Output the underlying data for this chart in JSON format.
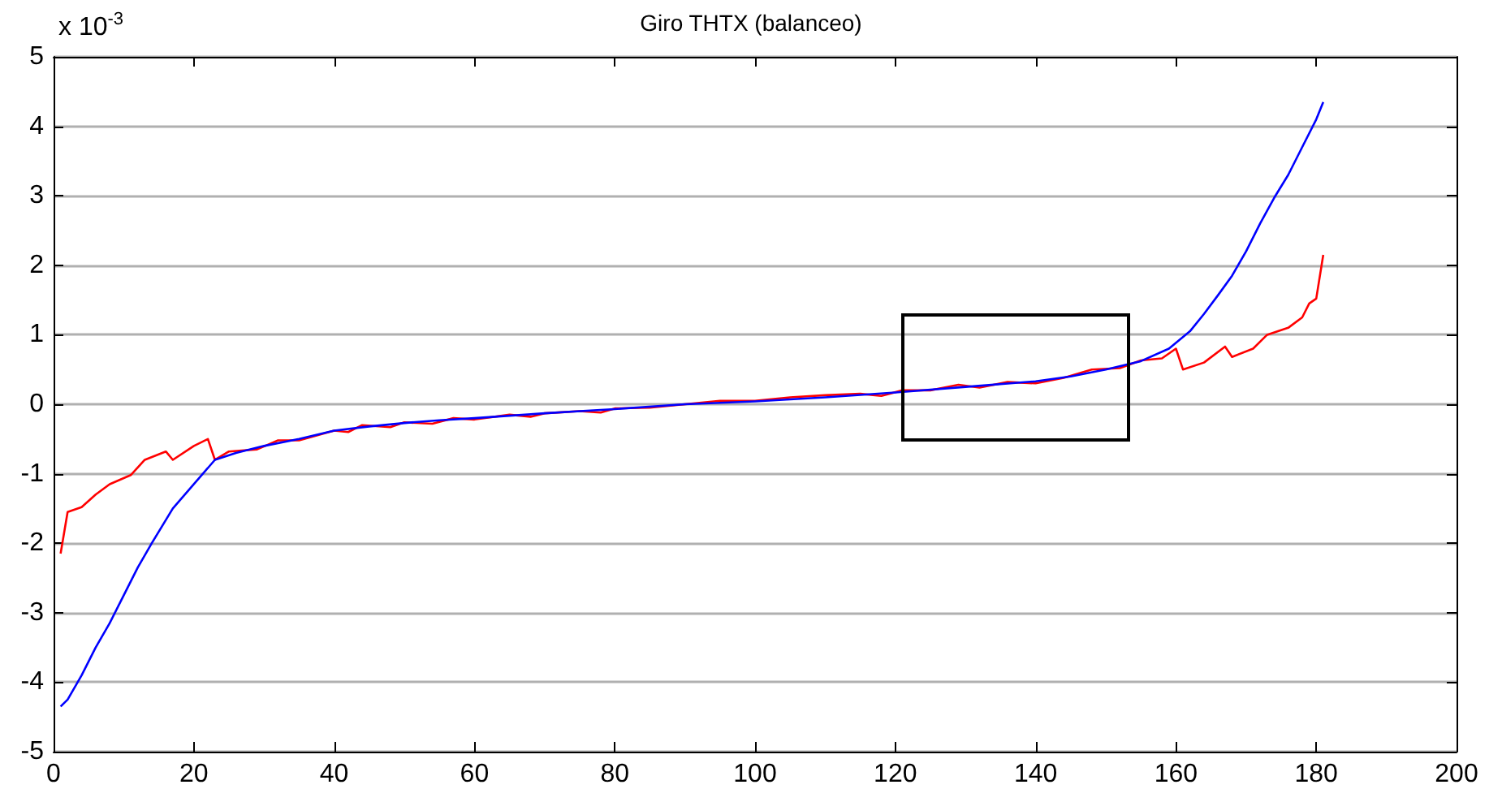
{
  "chart_data": {
    "type": "line",
    "title": "Giro THTX (balanceo)",
    "annotations": [
      "x 10$^{-3}$"
    ],
    "xlim": [
      0,
      200
    ],
    "xticks": [
      0,
      20,
      40,
      60,
      80,
      100,
      120,
      140,
      160,
      180,
      200
    ],
    "ylim": [
      -5,
      5
    ],
    "yticks": [
      -5,
      -4,
      -3,
      -2,
      -1,
      0,
      1,
      2,
      3,
      4,
      5
    ],
    "grid": "y",
    "marker": "none",
    "line_style": "solid",
    "series": [
      {
        "color": "#ff0000",
        "x": [
          1,
          2,
          4,
          6,
          8,
          11,
          13,
          16,
          17,
          20,
          22,
          23,
          25,
          29,
          32,
          35,
          40,
          42,
          44,
          48,
          50,
          54,
          57,
          60,
          65,
          68,
          70,
          75,
          78,
          80,
          85,
          90,
          95,
          100,
          105,
          110,
          115,
          118,
          121,
          125,
          129,
          132,
          136,
          140,
          144,
          148,
          152,
          155,
          158,
          160,
          161,
          164,
          167,
          168,
          171,
          173,
          176,
          178,
          179,
          180,
          181
        ],
        "values": [
          -2.15,
          -1.55,
          -1.48,
          -1.3,
          -1.15,
          -1.02,
          -0.8,
          -0.68,
          -0.8,
          -0.6,
          -0.5,
          -0.8,
          -0.68,
          -0.65,
          -0.52,
          -0.52,
          -0.38,
          -0.4,
          -0.3,
          -0.33,
          -0.26,
          -0.28,
          -0.2,
          -0.22,
          -0.15,
          -0.18,
          -0.13,
          -0.1,
          -0.12,
          -0.06,
          -0.05,
          0,
          0.05,
          0.05,
          0.1,
          0.13,
          0.15,
          0.12,
          0.2,
          0.2,
          0.28,
          0.24,
          0.32,
          0.3,
          0.38,
          0.5,
          0.52,
          0.63,
          0.66,
          0.8,
          0.5,
          0.6,
          0.83,
          0.68,
          0.8,
          1.0,
          1.1,
          1.25,
          1.45,
          1.52,
          2.15
        ]
      },
      {
        "color": "#0000ff",
        "x": [
          1,
          2,
          4,
          6,
          8,
          10,
          12,
          14,
          17,
          20,
          23,
          26,
          30,
          35,
          40,
          45,
          50,
          55,
          60,
          70,
          80,
          90,
          100,
          110,
          120,
          130,
          140,
          145,
          150,
          155,
          159,
          162,
          164,
          166,
          168,
          170,
          172,
          174,
          176,
          178,
          180,
          181
        ],
        "values": [
          -4.35,
          -4.25,
          -3.9,
          -3.5,
          -3.15,
          -2.75,
          -2.35,
          -2.0,
          -1.5,
          -1.15,
          -0.8,
          -0.7,
          -0.6,
          -0.5,
          -0.38,
          -0.32,
          -0.27,
          -0.23,
          -0.2,
          -0.13,
          -0.07,
          0,
          0.04,
          0.1,
          0.17,
          0.25,
          0.33,
          0.4,
          0.5,
          0.62,
          0.8,
          1.05,
          1.3,
          1.57,
          1.85,
          2.2,
          2.6,
          2.97,
          3.3,
          3.7,
          4.1,
          4.35
        ]
      }
    ]
  }
}
